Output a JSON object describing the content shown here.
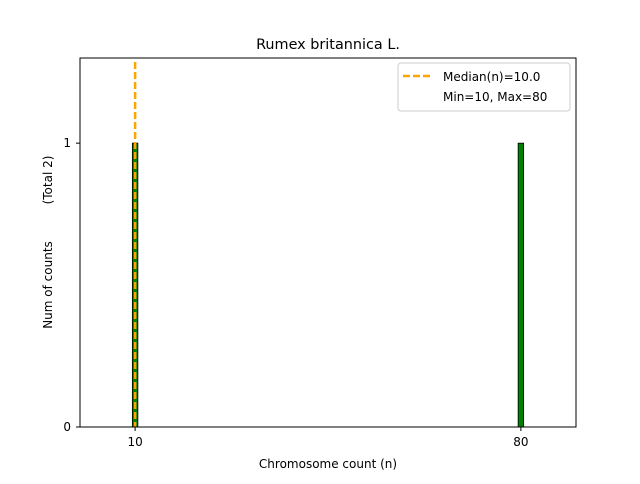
{
  "chart_data": {
    "type": "bar",
    "title": "Rumex britannica L.",
    "xlabel": "Chromosome count (n)",
    "ylabel": "Num of counts",
    "ylabel_note": "(Total 2)",
    "x_ticks": [
      10,
      80
    ],
    "y_ticks": [
      0,
      1
    ],
    "xlim": [
      0,
      90
    ],
    "ylim": [
      0,
      1.3
    ],
    "bar_width": 1,
    "bars": [
      {
        "x": 10,
        "value": 1
      },
      {
        "x": 80,
        "value": 1
      }
    ],
    "median": 10.0,
    "legend": {
      "position": "top-right",
      "entries": [
        {
          "label": "Median(n)=10.0",
          "style": "dashed-line"
        },
        {
          "label": "Min=10, Max=80",
          "style": "none"
        }
      ]
    },
    "grid": false,
    "colors": {
      "bar_fill": "#008000",
      "bar_edge": "#000000",
      "median_line": "#FFA500"
    }
  }
}
